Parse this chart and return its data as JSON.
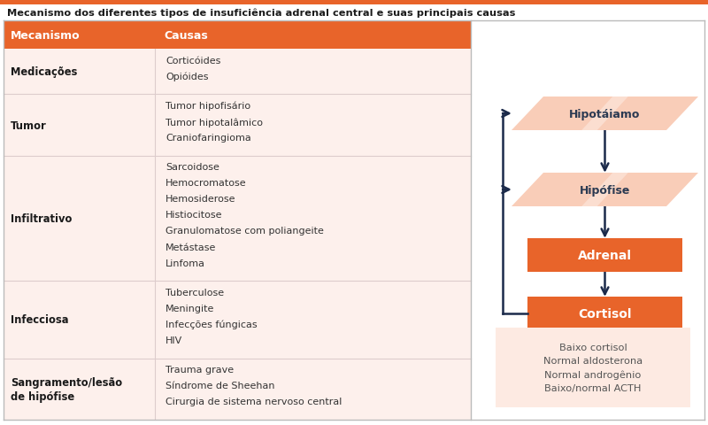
{
  "title": "Mecanismo dos diferentes tipos de insuficiência adrenal central e suas principais causas",
  "header_col1": "Mecanismo",
  "header_col2": "Causas",
  "header_bg": "#E8642A",
  "header_text_color": "#FFFFFF",
  "table_bg": "#FDF0EC",
  "outer_bg": "#FFFFFF",
  "rows": [
    {
      "mechanism": "Medicações",
      "causes": [
        "Corticóides",
        "Opióides"
      ]
    },
    {
      "mechanism": "Tumor",
      "causes": [
        "Tumor hipofisário",
        "Tumor hipotalâmico",
        "Craniofaringioma"
      ]
    },
    {
      "mechanism": "Infiltrativo",
      "causes": [
        "Sarcoidose",
        "Hemocromatose",
        "Hemosiderose",
        "Histiocitose",
        "Granulomatose com poliangeite",
        "Metástase",
        "Linfoma"
      ]
    },
    {
      "mechanism": "Infecciosa",
      "causes": [
        "Tuberculose",
        "Meningite",
        "Infecções fúngicas",
        "HIV"
      ]
    },
    {
      "mechanism": "Sangramento/lesão\nde hipófise",
      "causes": [
        "Trauma grave",
        "Síndrome de Sheehan",
        "Cirurgia de sistema nervoso central"
      ]
    }
  ],
  "diagram": {
    "box_hipotalamo": {
      "label": "Hipotáiamo",
      "color": "#F9CDB8",
      "text_color": "#2B3A52"
    },
    "box_hipofise": {
      "label": "Hipófise",
      "color": "#F9CDB8",
      "text_color": "#2B3A52"
    },
    "box_adrenal": {
      "label": "Adrenal",
      "color": "#E8642A",
      "text_color": "#FFFFFF"
    },
    "box_cortisol": {
      "label": "Cortisol",
      "color": "#E8642A",
      "text_color": "#FFFFFF"
    },
    "arrow_color": "#1B2A4A",
    "info_text": "Baixo cortisol\nNormal aldosterona\nNormal androgênio\nBaixo/normal ACTH",
    "info_text_color": "#555555",
    "info_bg": "#FDEAE2"
  }
}
